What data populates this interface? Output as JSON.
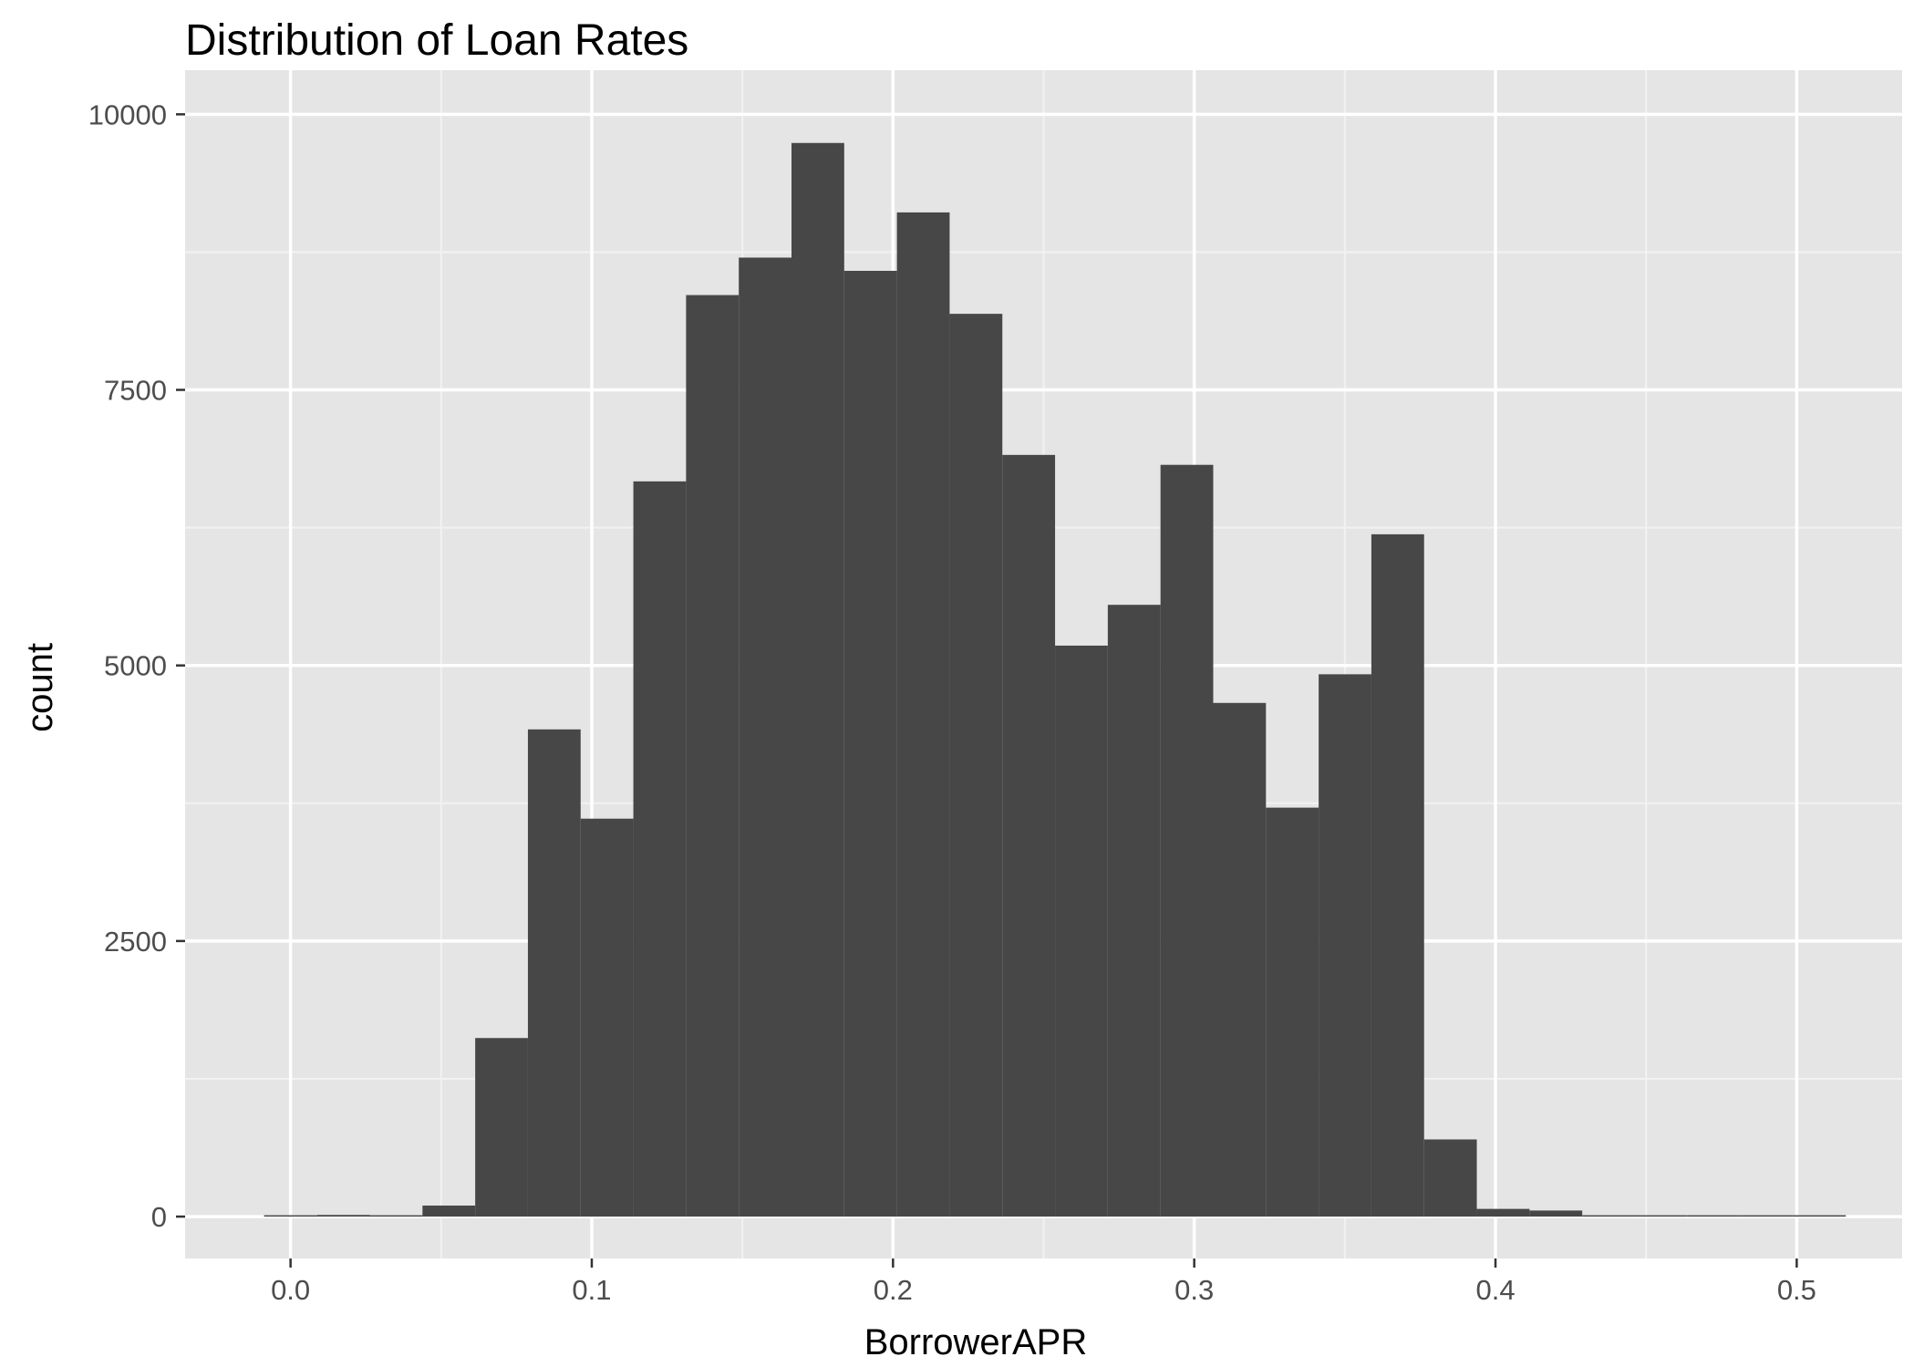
{
  "chart_data": {
    "type": "bar",
    "title": "Distribution of Loan Rates",
    "xlabel": "BorrowerAPR",
    "ylabel": "count",
    "xlim": [
      -0.035,
      0.535
    ],
    "ylim": [
      -380,
      10400
    ],
    "x_ticks": [
      "0.0",
      "0.1",
      "0.2",
      "0.3",
      "0.4",
      "0.5"
    ],
    "y_ticks": [
      "0",
      "2500",
      "5000",
      "7500",
      "10000"
    ],
    "grid": true,
    "legend": "none",
    "bin_width": 0.0175,
    "bins": [
      {
        "x0": -0.0088,
        "x1": 0.0088,
        "count": 5
      },
      {
        "x0": 0.0088,
        "x1": 0.0263,
        "count": 15
      },
      {
        "x0": 0.0263,
        "x1": 0.0438,
        "count": 10
      },
      {
        "x0": 0.0438,
        "x1": 0.0613,
        "count": 100
      },
      {
        "x0": 0.0613,
        "x1": 0.0788,
        "count": 1620
      },
      {
        "x0": 0.0788,
        "x1": 0.0963,
        "count": 4420
      },
      {
        "x0": 0.0963,
        "x1": 0.1138,
        "count": 3610
      },
      {
        "x0": 0.1138,
        "x1": 0.1313,
        "count": 6670
      },
      {
        "x0": 0.1313,
        "x1": 0.1488,
        "count": 8360
      },
      {
        "x0": 0.1488,
        "x1": 0.1663,
        "count": 8700
      },
      {
        "x0": 0.1663,
        "x1": 0.1838,
        "count": 9740
      },
      {
        "x0": 0.1838,
        "x1": 0.2013,
        "count": 8580
      },
      {
        "x0": 0.2013,
        "x1": 0.2188,
        "count": 9110
      },
      {
        "x0": 0.2188,
        "x1": 0.2363,
        "count": 8190
      },
      {
        "x0": 0.2363,
        "x1": 0.2538,
        "count": 6910
      },
      {
        "x0": 0.2538,
        "x1": 0.2713,
        "count": 5180
      },
      {
        "x0": 0.2713,
        "x1": 0.2888,
        "count": 5550
      },
      {
        "x0": 0.2888,
        "x1": 0.3063,
        "count": 6820
      },
      {
        "x0": 0.3063,
        "x1": 0.3238,
        "count": 4660
      },
      {
        "x0": 0.3238,
        "x1": 0.3413,
        "count": 3710
      },
      {
        "x0": 0.3413,
        "x1": 0.3588,
        "count": 4920
      },
      {
        "x0": 0.3588,
        "x1": 0.3763,
        "count": 6190
      },
      {
        "x0": 0.3763,
        "x1": 0.3938,
        "count": 700
      },
      {
        "x0": 0.3938,
        "x1": 0.4113,
        "count": 70
      },
      {
        "x0": 0.4113,
        "x1": 0.4288,
        "count": 55
      },
      {
        "x0": 0.4288,
        "x1": 0.4463,
        "count": 0
      },
      {
        "x0": 0.4463,
        "x1": 0.4638,
        "count": 10
      },
      {
        "x0": 0.4638,
        "x1": 0.4813,
        "count": 0
      },
      {
        "x0": 0.4813,
        "x1": 0.4988,
        "count": 3
      },
      {
        "x0": 0.4988,
        "x1": 0.5163,
        "count": 3
      }
    ],
    "colors": {
      "bar": "#474747",
      "panel": "#e5e5e5",
      "grid_major": "#ffffff",
      "grid_minor": "#f2f2f2",
      "tick_text": "#4d4d4d",
      "tick_mark": "#333333"
    }
  }
}
